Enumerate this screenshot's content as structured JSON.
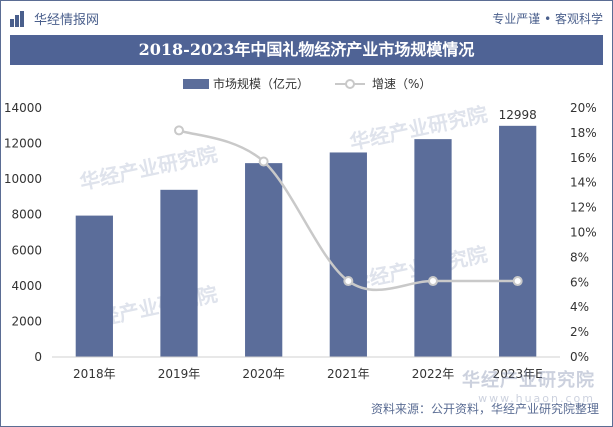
{
  "header": {
    "brand": "华经情报网",
    "tagline": "专业严谨 • 客观科学",
    "title": "2018-2023年中国礼物经济产业市场规模情况"
  },
  "source": "资料来源：公开资料，华经产业研究院整理",
  "watermark": {
    "text": "华经产业研究院",
    "corner_cn": "华经产业研究院",
    "corner_url": "www.huaon.com"
  },
  "colors": {
    "bar": "#5b6d9a",
    "line": "#c9c9c9",
    "title_bg": "#4f6395",
    "accent": "#4a5f8c"
  },
  "chart_data": {
    "type": "bar",
    "title": "2018-2023年中国礼物经济产业市场规模情况",
    "categories": [
      "2018年",
      "2019年",
      "2020年",
      "2021年",
      "2022年",
      "2023年E"
    ],
    "series": [
      {
        "name": "市场规模（亿元）",
        "type": "bar",
        "axis": "left",
        "values": [
          7950,
          9400,
          10900,
          11500,
          12250,
          12998
        ]
      },
      {
        "name": "增速（%）",
        "type": "line",
        "axis": "right",
        "values": [
          null,
          18.2,
          15.7,
          6.1,
          6.1,
          6.1
        ]
      }
    ],
    "data_labels": [
      {
        "index": 5,
        "text": "12998"
      }
    ],
    "y_left": {
      "min": 0,
      "max": 14000,
      "ticks": [
        0,
        2000,
        4000,
        6000,
        8000,
        10000,
        12000,
        14000
      ]
    },
    "y_right": {
      "min": 0,
      "max": 20,
      "ticks": [
        "0%",
        "2%",
        "4%",
        "6%",
        "8%",
        "10%",
        "12%",
        "14%",
        "16%",
        "18%",
        "20%"
      ]
    },
    "legend": "top-center",
    "grid": false
  }
}
